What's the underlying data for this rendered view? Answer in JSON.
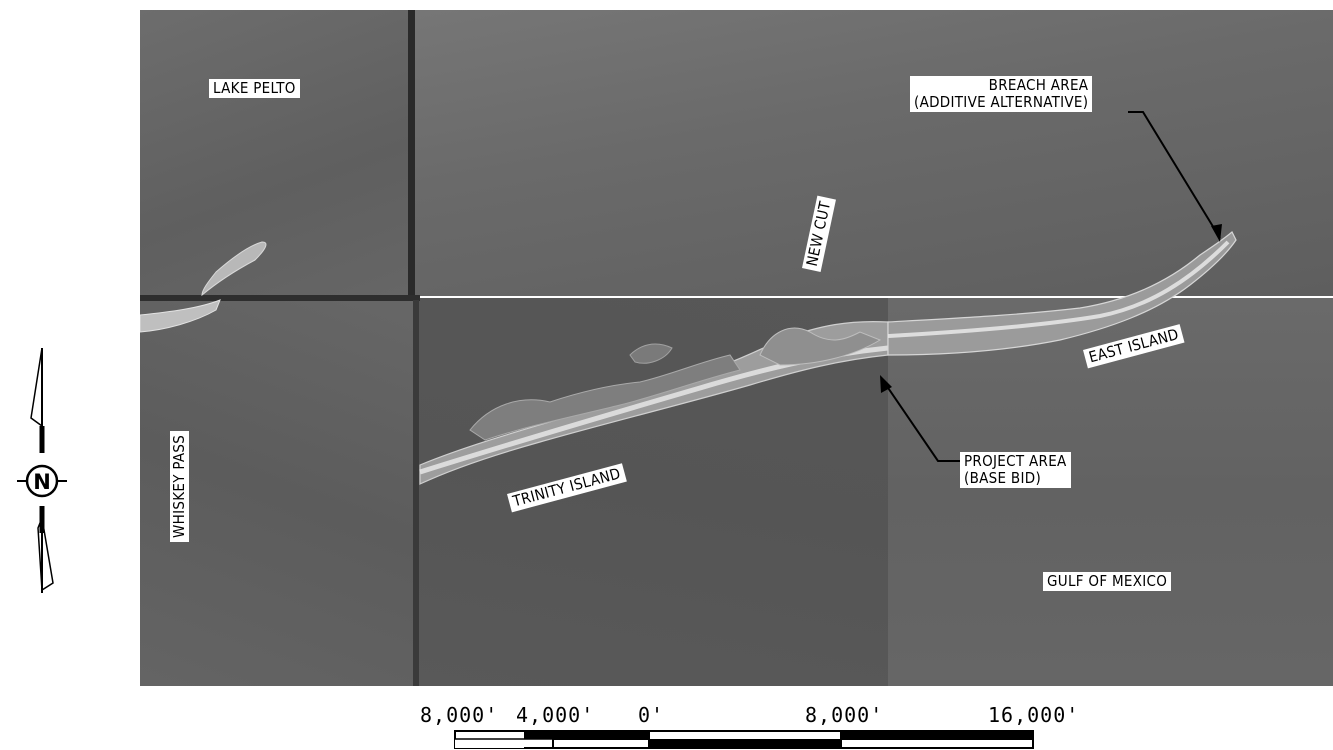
{
  "labels": {
    "lake_pelto": "LAKE PELTO",
    "breach_area": "BREACH AREA\n(ADDITIVE ALTERNATIVE)",
    "new_cut": "NEW CUT",
    "east_island": "EAST ISLAND",
    "whiskey_pass": "WHISKEY PASS",
    "trinity_island": "TRINITY ISLAND",
    "project_area": "PROJECT AREA\n(BASE BID)",
    "gulf_of_mexico": "GULF OF MEXICO"
  },
  "north_arrow": {
    "letter": "N"
  },
  "scale_bar": {
    "ticks": [
      "8,000'",
      "4,000'",
      "0'",
      "8,000'",
      "16,000'"
    ]
  }
}
